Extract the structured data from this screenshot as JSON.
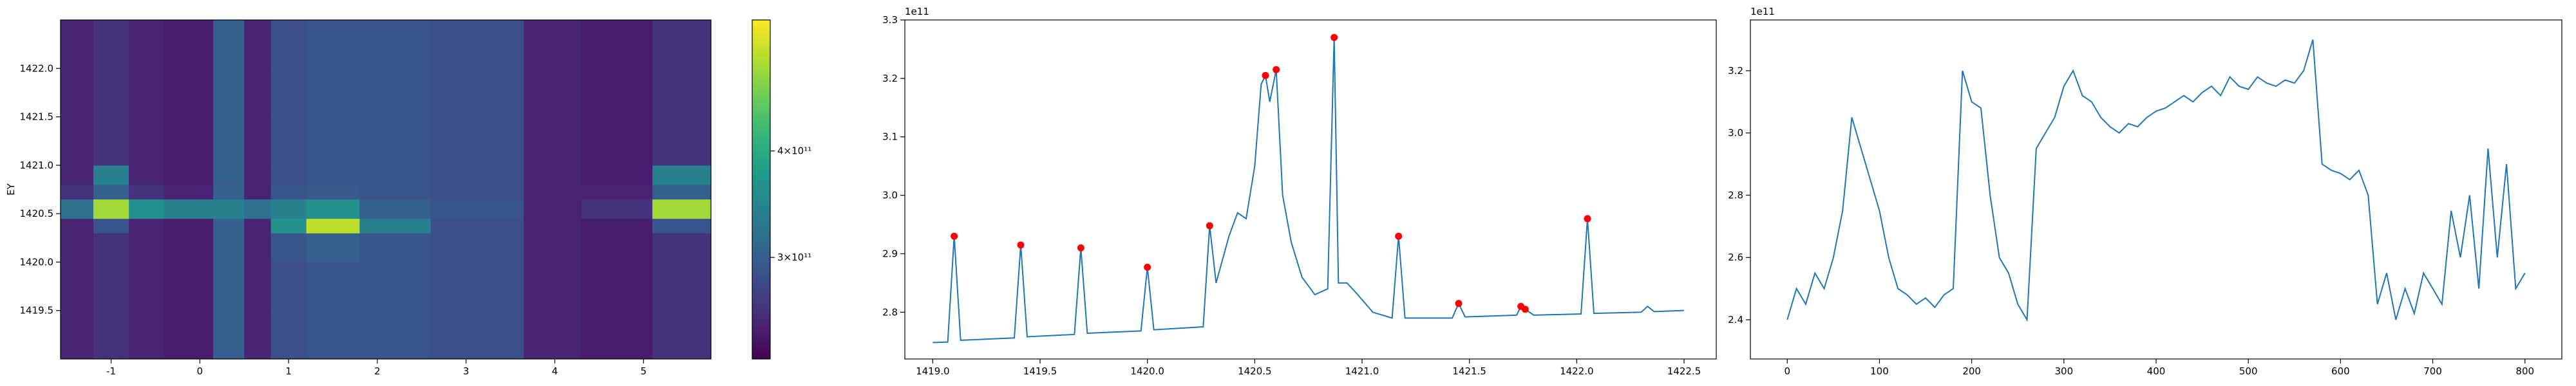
{
  "chart_data": [
    {
      "type": "heatmap",
      "ylabel": "EY",
      "xlim": [
        -1.57,
        5.76
      ],
      "ylim": [
        1419.0,
        1422.5
      ],
      "xticks": [
        -1,
        0,
        1,
        2,
        3,
        4,
        5
      ],
      "yticks": [
        1419.5,
        {
          "value": 1420,
          "label": "1420.0"
        },
        1420.5,
        {
          "value": 1421,
          "label": "1421.0"
        },
        1421.5,
        {
          "value": 1422,
          "label": "1422.0"
        }
      ],
      "x_edges": [
        -1.57,
        -1.2,
        -0.8,
        -0.4,
        0.15,
        0.5,
        0.8,
        1.2,
        1.8,
        2.6,
        3.65,
        4.3,
        5.1,
        5.76
      ],
      "y_edges": [
        1419.0,
        1419.5,
        1420.0,
        1420.3,
        1420.45,
        1420.65,
        1420.8,
        1421.0,
        1421.5,
        1422.0,
        1422.5
      ],
      "values": [
        [
          250000000000.0,
          260000000000.0,
          250000000000.0,
          245000000000.0,
          300000000000.0,
          250000000000.0,
          285000000000.0,
          290000000000.0,
          290000000000.0,
          285000000000.0,
          250000000000.0,
          245000000000.0,
          260000000000.0
        ],
        [
          250000000000.0,
          260000000000.0,
          250000000000.0,
          245000000000.0,
          300000000000.0,
          250000000000.0,
          285000000000.0,
          290000000000.0,
          290000000000.0,
          285000000000.0,
          250000000000.0,
          245000000000.0,
          260000000000.0
        ],
        [
          250000000000.0,
          260000000000.0,
          250000000000.0,
          245000000000.0,
          300000000000.0,
          250000000000.0,
          290000000000.0,
          300000000000.0,
          290000000000.0,
          285000000000.0,
          250000000000.0,
          245000000000.0,
          260000000000.0
        ],
        [
          250000000000.0,
          290000000000.0,
          250000000000.0,
          245000000000.0,
          300000000000.0,
          250000000000.0,
          360000000000.0,
          520000000000.0,
          340000000000.0,
          285000000000.0,
          250000000000.0,
          245000000000.0,
          290000000000.0
        ],
        [
          320000000000.0,
          500000000000.0,
          360000000000.0,
          340000000000.0,
          340000000000.0,
          320000000000.0,
          340000000000.0,
          360000000000.0,
          300000000000.0,
          290000000000.0,
          250000000000.0,
          260000000000.0,
          500000000000.0
        ],
        [
          260000000000.0,
          300000000000.0,
          260000000000.0,
          250000000000.0,
          300000000000.0,
          250000000000.0,
          290000000000.0,
          295000000000.0,
          290000000000.0,
          285000000000.0,
          250000000000.0,
          250000000000.0,
          300000000000.0
        ],
        [
          250000000000.0,
          340000000000.0,
          250000000000.0,
          245000000000.0,
          300000000000.0,
          250000000000.0,
          285000000000.0,
          290000000000.0,
          290000000000.0,
          285000000000.0,
          250000000000.0,
          245000000000.0,
          340000000000.0
        ],
        [
          250000000000.0,
          260000000000.0,
          250000000000.0,
          245000000000.0,
          300000000000.0,
          250000000000.0,
          285000000000.0,
          290000000000.0,
          290000000000.0,
          285000000000.0,
          250000000000.0,
          245000000000.0,
          260000000000.0
        ],
        [
          250000000000.0,
          260000000000.0,
          250000000000.0,
          245000000000.0,
          300000000000.0,
          250000000000.0,
          285000000000.0,
          290000000000.0,
          290000000000.0,
          285000000000.0,
          250000000000.0,
          245000000000.0,
          260000000000.0
        ],
        [
          250000000000.0,
          260000000000.0,
          250000000000.0,
          245000000000.0,
          300000000000.0,
          250000000000.0,
          285000000000.0,
          290000000000.0,
          290000000000.0,
          285000000000.0,
          250000000000.0,
          245000000000.0,
          260000000000.0
        ]
      ],
      "colorbar": {
        "scale": "log",
        "colormap": "viridis",
        "clim": [
          228000000000.0,
          570000000000.0
        ],
        "ticks": [
          {
            "value": 300000000000.0,
            "label": "3×10¹¹"
          },
          {
            "value": 400000000000.0,
            "label": "4×10¹¹"
          }
        ]
      }
    },
    {
      "type": "line",
      "y_offset_label": "1e11",
      "xlim": [
        1418.87,
        1422.65
      ],
      "ylim": [
        2.72,
        3.3
      ],
      "xticks": [
        {
          "value": 1419,
          "label": "1419.0"
        },
        1419.5,
        {
          "value": 1420,
          "label": "1420.0"
        },
        1420.5,
        {
          "value": 1421,
          "label": "1421.0"
        },
        1421.5,
        {
          "value": 1422,
          "label": "1422.0"
        },
        1422.5
      ],
      "yticks": [
        2.8,
        2.9,
        {
          "value": 3,
          "label": "3.0"
        },
        3.1,
        3.2,
        3.3
      ],
      "series": [
        {
          "color": "#1f77b4",
          "mode": "line",
          "x": [
            1419.0,
            1419.07,
            1419.1,
            1419.13,
            1419.38,
            1419.41,
            1419.44,
            1419.66,
            1419.69,
            1419.72,
            1419.97,
            1420.0,
            1420.03,
            1420.26,
            1420.29,
            1420.32,
            1420.38,
            1420.42,
            1420.46,
            1420.5,
            1420.53,
            1420.55,
            1420.57,
            1420.6,
            1420.63,
            1420.67,
            1420.72,
            1420.78,
            1420.84,
            1420.87,
            1420.89,
            1420.93,
            1420.98,
            1421.05,
            1421.14,
            1421.17,
            1421.2,
            1421.42,
            1421.45,
            1421.48,
            1421.72,
            1421.74,
            1421.76,
            1421.8,
            1422.02,
            1422.05,
            1422.08,
            1422.3,
            1422.33,
            1422.36,
            1422.5
          ],
          "values": [
            2.748,
            2.749,
            2.93,
            2.752,
            2.756,
            2.915,
            2.758,
            2.762,
            2.91,
            2.764,
            2.768,
            2.877,
            2.77,
            2.775,
            2.948,
            2.85,
            2.93,
            2.97,
            2.96,
            3.05,
            3.19,
            3.205,
            3.16,
            3.215,
            3.0,
            2.92,
            2.86,
            2.83,
            2.84,
            3.27,
            2.85,
            2.85,
            2.83,
            2.8,
            2.79,
            2.93,
            2.79,
            2.79,
            2.815,
            2.792,
            2.795,
            2.81,
            2.805,
            2.795,
            2.797,
            2.96,
            2.798,
            2.8,
            2.81,
            2.801,
            2.803
          ]
        },
        {
          "color": "#ff0000",
          "mode": "markers",
          "x": [
            1419.1,
            1419.41,
            1419.69,
            1420.0,
            1420.29,
            1420.55,
            1420.6,
            1420.87,
            1421.17,
            1421.45,
            1421.74,
            1421.76,
            1422.05
          ],
          "values": [
            2.93,
            2.915,
            2.91,
            2.877,
            2.948,
            3.205,
            3.215,
            3.27,
            2.93,
            2.815,
            2.81,
            2.805,
            2.96
          ]
        }
      ]
    },
    {
      "type": "line",
      "y_offset_label": "1e11",
      "xlim": [
        -40,
        840
      ],
      "ylim": [
        2.274,
        3.363
      ],
      "xticks": [
        0,
        100,
        200,
        300,
        400,
        500,
        600,
        700,
        800
      ],
      "yticks": [
        2.4,
        2.6,
        2.8,
        {
          "value": 3,
          "label": "3.0"
        },
        3.2
      ],
      "series": [
        {
          "color": "#1f77b4",
          "mode": "line",
          "x": [
            0,
            10,
            20,
            30,
            40,
            50,
            60,
            70,
            80,
            90,
            100,
            110,
            120,
            130,
            140,
            150,
            160,
            170,
            180,
            190,
            200,
            210,
            220,
            230,
            240,
            250,
            260,
            270,
            280,
            290,
            300,
            310,
            320,
            330,
            340,
            350,
            360,
            370,
            380,
            390,
            400,
            410,
            420,
            430,
            440,
            450,
            460,
            470,
            480,
            490,
            500,
            510,
            520,
            530,
            540,
            550,
            560,
            570,
            580,
            590,
            600,
            610,
            620,
            630,
            640,
            650,
            660,
            670,
            680,
            690,
            700,
            710,
            720,
            730,
            740,
            750,
            760,
            770,
            780,
            790,
            800
          ],
          "values": [
            2.4,
            2.5,
            2.45,
            2.55,
            2.5,
            2.6,
            2.75,
            3.05,
            2.95,
            2.85,
            2.75,
            2.6,
            2.5,
            2.48,
            2.45,
            2.47,
            2.44,
            2.48,
            2.5,
            3.2,
            3.1,
            3.08,
            2.8,
            2.6,
            2.55,
            2.45,
            2.4,
            2.95,
            3.0,
            3.05,
            3.15,
            3.2,
            3.12,
            3.1,
            3.05,
            3.02,
            3.0,
            3.03,
            3.02,
            3.05,
            3.07,
            3.08,
            3.1,
            3.12,
            3.1,
            3.13,
            3.15,
            3.12,
            3.18,
            3.15,
            3.14,
            3.18,
            3.16,
            3.15,
            3.17,
            3.16,
            3.2,
            3.3,
            2.9,
            2.88,
            2.87,
            2.85,
            2.88,
            2.8,
            2.45,
            2.55,
            2.4,
            2.5,
            2.42,
            2.55,
            2.5,
            2.45,
            2.75,
            2.6,
            2.8,
            2.5,
            2.95,
            2.6,
            2.9,
            2.5,
            2.55
          ]
        }
      ]
    }
  ]
}
